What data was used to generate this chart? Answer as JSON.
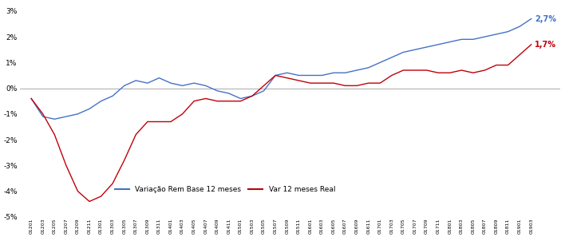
{
  "blue_series_label": "Variação Rem Base 12 meses",
  "red_series_label": "Var 12 meses Real",
  "blue_end_label": "2,7%",
  "red_end_label": "1,7%",
  "blue_color": "#4472C4",
  "red_color": "#C0000A",
  "ylim": [
    -0.05,
    0.033
  ],
  "yticks": [
    -0.05,
    -0.04,
    -0.03,
    -0.02,
    -0.01,
    0.0,
    0.01,
    0.02,
    0.03
  ],
  "ytick_labels": [
    "-5%",
    "-4%",
    "-3%",
    "-2%",
    "-1%",
    "0%",
    "1%",
    "2%",
    "3%"
  ],
  "background_color": "#ffffff",
  "zero_line_color": "#aaaaaa",
  "x_labels": [
    "01201",
    "01203",
    "01205",
    "01207",
    "01209",
    "01211",
    "01301",
    "01303",
    "01305",
    "01307",
    "01309",
    "01311",
    "01401",
    "01403",
    "01405",
    "01407",
    "01409",
    "01411",
    "01501",
    "01503",
    "01505",
    "01507",
    "01509",
    "01511",
    "01601",
    "01603",
    "01605",
    "01607",
    "01609",
    "01611",
    "01701",
    "01703",
    "01705",
    "01707",
    "01709",
    "01711",
    "01801",
    "01803",
    "01805",
    "01807",
    "01809",
    "01811",
    "01901",
    "01903"
  ],
  "blue_values": [
    -0.004,
    -0.011,
    -0.012,
    -0.011,
    -0.01,
    -0.008,
    -0.005,
    -0.003,
    0.001,
    0.003,
    0.002,
    0.004,
    0.002,
    0.001,
    0.002,
    0.001,
    -0.001,
    -0.002,
    -0.004,
    -0.003,
    -0.001,
    0.005,
    0.006,
    0.005,
    0.005,
    0.005,
    0.006,
    0.006,
    0.007,
    0.008,
    0.01,
    0.012,
    0.014,
    0.015,
    0.016,
    0.017,
    0.018,
    0.019,
    0.019,
    0.02,
    0.021,
    0.022,
    0.024,
    0.027
  ],
  "red_values": [
    -0.004,
    -0.01,
    -0.018,
    -0.03,
    -0.04,
    -0.044,
    -0.042,
    -0.037,
    -0.028,
    -0.018,
    -0.013,
    -0.013,
    -0.013,
    -0.01,
    -0.005,
    -0.004,
    -0.005,
    -0.005,
    -0.005,
    -0.003,
    0.001,
    0.005,
    0.004,
    0.003,
    0.002,
    0.002,
    0.002,
    0.001,
    0.001,
    0.002,
    0.002,
    0.005,
    0.007,
    0.007,
    0.007,
    0.006,
    0.006,
    0.007,
    0.006,
    0.007,
    0.009,
    0.009,
    0.013,
    0.017
  ],
  "figsize": [
    7.08,
    2.97
  ],
  "dpi": 100
}
